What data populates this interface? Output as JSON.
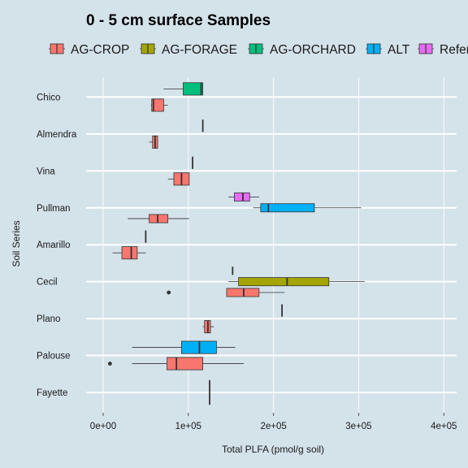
{
  "chart_data": {
    "type": "boxplot",
    "title": "0 - 5 cm surface Samples",
    "xlabel": "Total PLFA (pmol/g soil)",
    "ylabel": "Soil Series",
    "xlim": [
      -20000,
      415000
    ],
    "x_ticks": [
      0,
      100000,
      200000,
      300000,
      400000
    ],
    "x_tick_labels": [
      "0e+00",
      "1e+05",
      "2e+05",
      "3e+05",
      "4e+05"
    ],
    "legend_position": "top",
    "legend": [
      {
        "key": "AG-CROP",
        "label": "AG-CROP",
        "color": "#f8766d"
      },
      {
        "key": "AG-FORAGE",
        "label": "AG-FORAGE",
        "color": "#a3a500"
      },
      {
        "key": "AG-ORCHARD",
        "label": "AG-ORCHARD",
        "color": "#00bf7d"
      },
      {
        "key": "ALT",
        "label": "ALT",
        "color": "#00b0f6"
      },
      {
        "key": "Reference",
        "label": "Reference",
        "color": "#e76bf3"
      }
    ],
    "categories": [
      "Fayette",
      "Palouse",
      "Plano",
      "Cecil",
      "Amarillo",
      "Pullman",
      "Vina",
      "Almendra",
      "Chico"
    ],
    "boxes": [
      {
        "soil": "Fayette",
        "group": "AG-ORCHARD",
        "stats": [
          125000,
          125000,
          125000,
          125000,
          125000
        ],
        "outliers": []
      },
      {
        "soil": "Palouse",
        "group": "AG-CROP",
        "stats": [
          34000,
          75000,
          86000,
          117000,
          165000
        ],
        "outliers": [
          8000
        ]
      },
      {
        "soil": "Palouse",
        "group": "ALT",
        "stats": [
          34000,
          92000,
          113000,
          133000,
          155000
        ],
        "outliers": []
      },
      {
        "soil": "Plano",
        "group": "AG-ORCHARD",
        "stats": [
          210000,
          210000,
          210000,
          210000,
          210000
        ],
        "outliers": []
      },
      {
        "soil": "Plano",
        "group": "AG-CROP",
        "stats": [
          117000,
          119000,
          123000,
          126000,
          130000
        ],
        "outliers": []
      },
      {
        "soil": "Cecil",
        "group": "AG-CROP",
        "stats": [
          145000,
          145000,
          165000,
          183000,
          213000
        ],
        "outliers": [
          77000
        ]
      },
      {
        "soil": "Cecil",
        "group": "AG-FORAGE",
        "stats": [
          147000,
          159000,
          216000,
          265000,
          307000
        ],
        "outliers": []
      },
      {
        "soil": "Cecil",
        "group": "AG-ORCHARD",
        "stats": [
          152000,
          152000,
          152000,
          152000,
          152000
        ],
        "outliers": []
      },
      {
        "soil": "Amarillo",
        "group": "AG-CROP",
        "stats": [
          11000,
          22000,
          33000,
          40000,
          50000
        ],
        "outliers": []
      },
      {
        "soil": "Amarillo",
        "group": "AG-ORCHARD",
        "stats": [
          50000,
          50000,
          50000,
          50000,
          50000
        ],
        "outliers": []
      },
      {
        "soil": "Pullman",
        "group": "AG-CROP",
        "stats": [
          29000,
          54000,
          64000,
          76000,
          101000
        ],
        "outliers": []
      },
      {
        "soil": "Pullman",
        "group": "ALT",
        "stats": [
          176000,
          185000,
          194000,
          248000,
          303000
        ],
        "outliers": []
      },
      {
        "soil": "Pullman",
        "group": "Reference",
        "stats": [
          147000,
          154000,
          164000,
          172000,
          183000
        ],
        "outliers": []
      },
      {
        "soil": "Vina",
        "group": "AG-CROP",
        "stats": [
          76000,
          83000,
          92000,
          101000,
          101000
        ],
        "outliers": []
      },
      {
        "soil": "Vina",
        "group": "AG-ORCHARD",
        "stats": [
          105000,
          105000,
          105000,
          105000,
          105000
        ],
        "outliers": []
      },
      {
        "soil": "Almendra",
        "group": "AG-CROP",
        "stats": [
          54000,
          58000,
          61000,
          64000,
          64000
        ],
        "outliers": []
      },
      {
        "soil": "Almendra",
        "group": "AG-ORCHARD",
        "stats": [
          117000,
          117000,
          117000,
          117000,
          117000
        ],
        "outliers": []
      },
      {
        "soil": "Chico",
        "group": "AG-CROP",
        "stats": [
          56000,
          57000,
          59000,
          71000,
          76000
        ],
        "outliers": []
      },
      {
        "soil": "Chico",
        "group": "AG-ORCHARD",
        "stats": [
          71000,
          94000,
          115000,
          117000,
          117000
        ],
        "outliers": []
      }
    ]
  }
}
